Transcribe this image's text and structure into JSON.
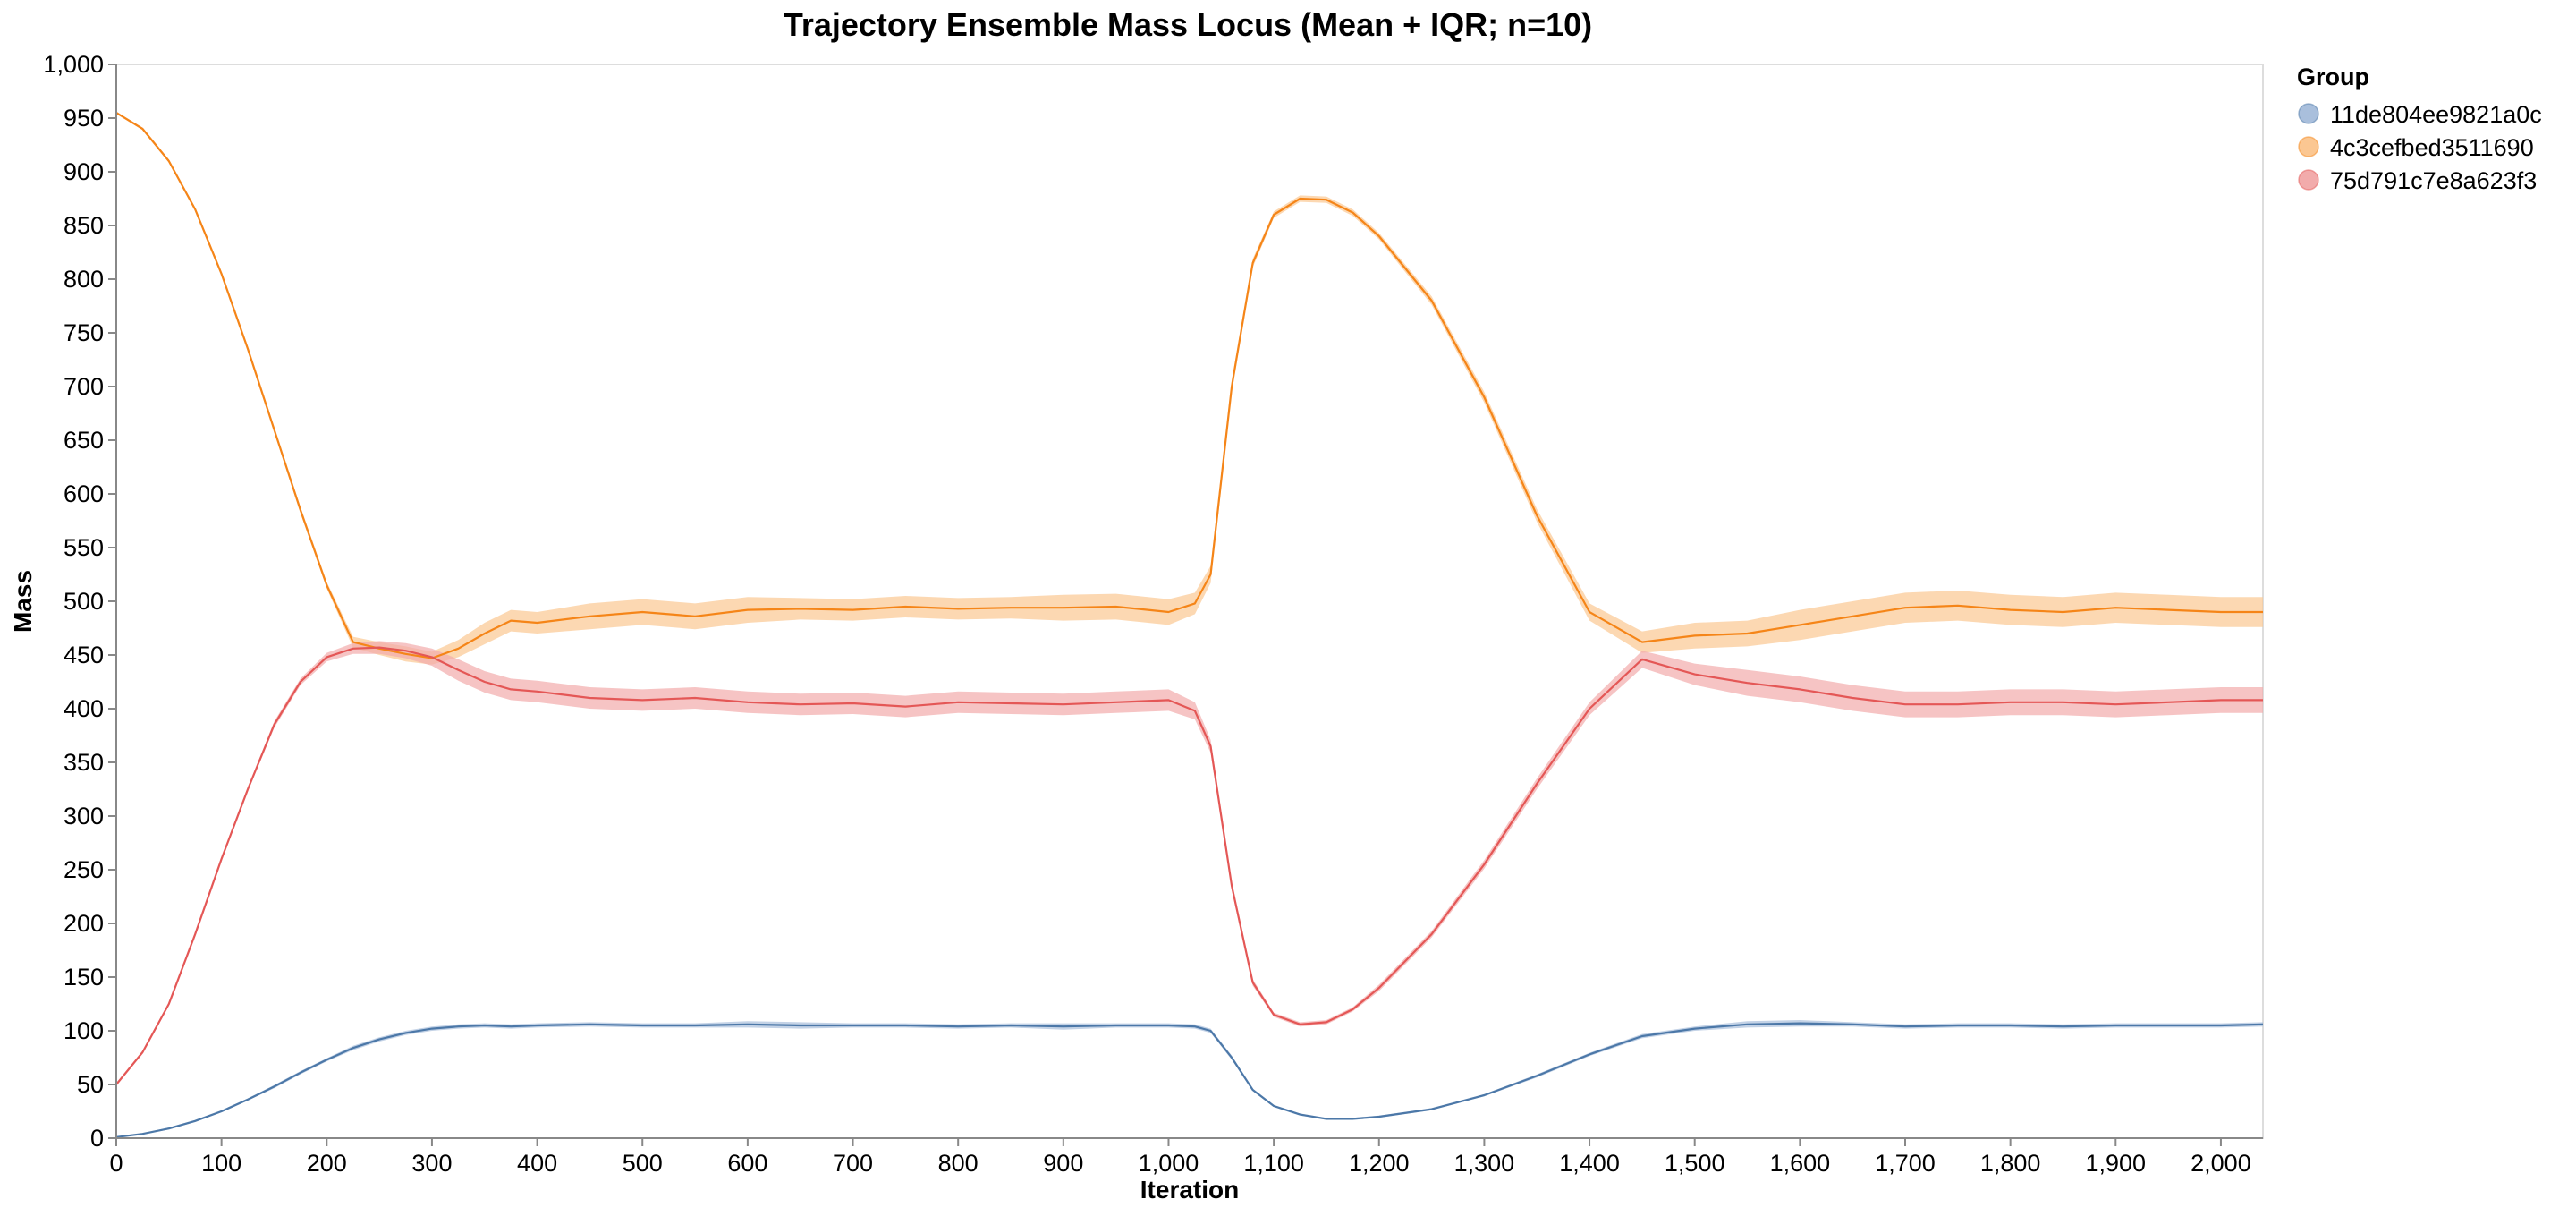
{
  "chart_data": {
    "type": "line",
    "title": "Trajectory Ensemble Mass Locus (Mean + IQR; n=10)",
    "xlabel": "Iteration",
    "ylabel": "Mass",
    "xlim": [
      0,
      2040
    ],
    "ylim": [
      0,
      1000
    ],
    "x_ticks": [
      0,
      100,
      200,
      300,
      400,
      500,
      600,
      700,
      800,
      900,
      1000,
      1100,
      1200,
      1300,
      1400,
      1500,
      1600,
      1700,
      1800,
      1900,
      2000
    ],
    "x_tick_labels": [
      "0",
      "100",
      "200",
      "300",
      "400",
      "500",
      "600",
      "700",
      "800",
      "900",
      "1,000",
      "1,100",
      "1,200",
      "1,300",
      "1,400",
      "1,500",
      "1,600",
      "1,700",
      "1,800",
      "1,900",
      "2,000"
    ],
    "y_ticks": [
      0,
      50,
      100,
      150,
      200,
      250,
      300,
      350,
      400,
      450,
      500,
      550,
      600,
      650,
      700,
      750,
      800,
      850,
      900,
      950,
      1000
    ],
    "y_tick_labels": [
      "0",
      "50",
      "100",
      "150",
      "200",
      "250",
      "300",
      "350",
      "400",
      "450",
      "500",
      "550",
      "600",
      "650",
      "700",
      "750",
      "800",
      "850",
      "900",
      "950",
      "1,000"
    ],
    "grid": false,
    "legend": {
      "title": "Group",
      "position": "top-right"
    },
    "series": [
      {
        "name": "11de804ee9821a0c",
        "color": "#4c78a8",
        "band_color": "#a9bfdc",
        "x": [
          0,
          25,
          50,
          75,
          100,
          125,
          150,
          175,
          200,
          225,
          250,
          275,
          300,
          325,
          350,
          375,
          400,
          450,
          500,
          550,
          600,
          650,
          700,
          750,
          800,
          850,
          900,
          950,
          1000,
          1025,
          1040,
          1060,
          1080,
          1100,
          1125,
          1150,
          1175,
          1200,
          1250,
          1300,
          1350,
          1400,
          1450,
          1500,
          1550,
          1600,
          1650,
          1700,
          1750,
          1800,
          1850,
          1900,
          1950,
          2000,
          2040
        ],
        "mean": [
          1,
          4,
          9,
          16,
          25,
          36,
          48,
          61,
          73,
          84,
          92,
          98,
          102,
          104,
          105,
          104,
          105,
          106,
          105,
          105,
          106,
          105,
          105,
          105,
          104,
          105,
          104,
          105,
          105,
          104,
          100,
          75,
          45,
          30,
          22,
          18,
          18,
          20,
          27,
          40,
          58,
          78,
          95,
          102,
          106,
          107,
          106,
          104,
          105,
          105,
          104,
          105,
          105,
          105,
          106
        ],
        "iqr": [
          0.5,
          0.5,
          1,
          1,
          1,
          1,
          1.5,
          1.5,
          1.5,
          2,
          2,
          2,
          2,
          2,
          2,
          2,
          2,
          2,
          2,
          2,
          3,
          3,
          2,
          2,
          2,
          2,
          3,
          2,
          2,
          2,
          2,
          2,
          1,
          1,
          1,
          1,
          1,
          1,
          1,
          1,
          1.5,
          1.5,
          2,
          2,
          3,
          3,
          2,
          2,
          2,
          2,
          2,
          2,
          2,
          2,
          2
        ]
      },
      {
        "name": "4c3cefbed3511690",
        "color": "#f58518",
        "band_color": "#fbc792",
        "x": [
          0,
          25,
          50,
          75,
          100,
          125,
          150,
          175,
          200,
          225,
          250,
          275,
          300,
          325,
          350,
          375,
          400,
          450,
          500,
          550,
          600,
          650,
          700,
          750,
          800,
          850,
          900,
          950,
          1000,
          1025,
          1040,
          1060,
          1080,
          1100,
          1125,
          1150,
          1175,
          1200,
          1250,
          1300,
          1350,
          1400,
          1450,
          1500,
          1550,
          1600,
          1650,
          1700,
          1750,
          1800,
          1850,
          1900,
          1950,
          2000,
          2040
        ],
        "mean": [
          955,
          940,
          910,
          865,
          805,
          735,
          660,
          585,
          515,
          462,
          456,
          451,
          447,
          456,
          470,
          482,
          480,
          486,
          490,
          486,
          492,
          493,
          492,
          495,
          493,
          494,
          494,
          495,
          490,
          498,
          525,
          700,
          815,
          860,
          875,
          874,
          862,
          840,
          780,
          690,
          580,
          490,
          462,
          468,
          470,
          478,
          486,
          494,
          496,
          492,
          490,
          494,
          492,
          490,
          490
        ],
        "iqr": [
          1,
          1,
          1.5,
          1.5,
          2,
          2,
          2,
          3,
          3,
          5,
          6,
          7,
          6,
          8,
          10,
          10,
          10,
          12,
          12,
          12,
          12,
          10,
          10,
          10,
          10,
          10,
          12,
          12,
          12,
          10,
          8,
          6,
          4,
          3,
          3,
          3,
          3,
          3,
          4,
          5,
          6,
          8,
          10,
          12,
          12,
          14,
          14,
          14,
          14,
          14,
          14,
          14,
          14,
          14,
          14
        ]
      },
      {
        "name": "75d791c7e8a623f3",
        "color": "#e45756",
        "band_color": "#f2abab",
        "x": [
          0,
          25,
          50,
          75,
          100,
          125,
          150,
          175,
          200,
          225,
          250,
          275,
          300,
          325,
          350,
          375,
          400,
          450,
          500,
          550,
          600,
          650,
          700,
          750,
          800,
          850,
          900,
          950,
          1000,
          1025,
          1040,
          1060,
          1080,
          1100,
          1125,
          1150,
          1175,
          1200,
          1250,
          1300,
          1350,
          1400,
          1450,
          1500,
          1550,
          1600,
          1650,
          1700,
          1750,
          1800,
          1850,
          1900,
          1950,
          2000,
          2040
        ],
        "mean": [
          50,
          80,
          125,
          190,
          260,
          325,
          385,
          425,
          448,
          456,
          457,
          454,
          448,
          436,
          425,
          418,
          416,
          410,
          408,
          410,
          406,
          404,
          405,
          402,
          406,
          405,
          404,
          406,
          408,
          398,
          365,
          235,
          145,
          115,
          106,
          108,
          120,
          140,
          190,
          255,
          330,
          400,
          446,
          432,
          424,
          418,
          410,
          404,
          404,
          406,
          406,
          404,
          406,
          408,
          408
        ],
        "iqr": [
          1,
          1,
          1.5,
          2,
          2,
          2,
          3,
          3,
          4,
          5,
          6,
          7,
          8,
          10,
          10,
          10,
          10,
          10,
          10,
          10,
          10,
          10,
          10,
          10,
          10,
          10,
          10,
          10,
          10,
          8,
          6,
          4,
          3,
          2,
          2,
          2,
          2,
          3,
          3,
          4,
          5,
          6,
          8,
          10,
          12,
          12,
          12,
          12,
          12,
          12,
          12,
          12,
          12,
          12,
          12
        ]
      }
    ]
  }
}
